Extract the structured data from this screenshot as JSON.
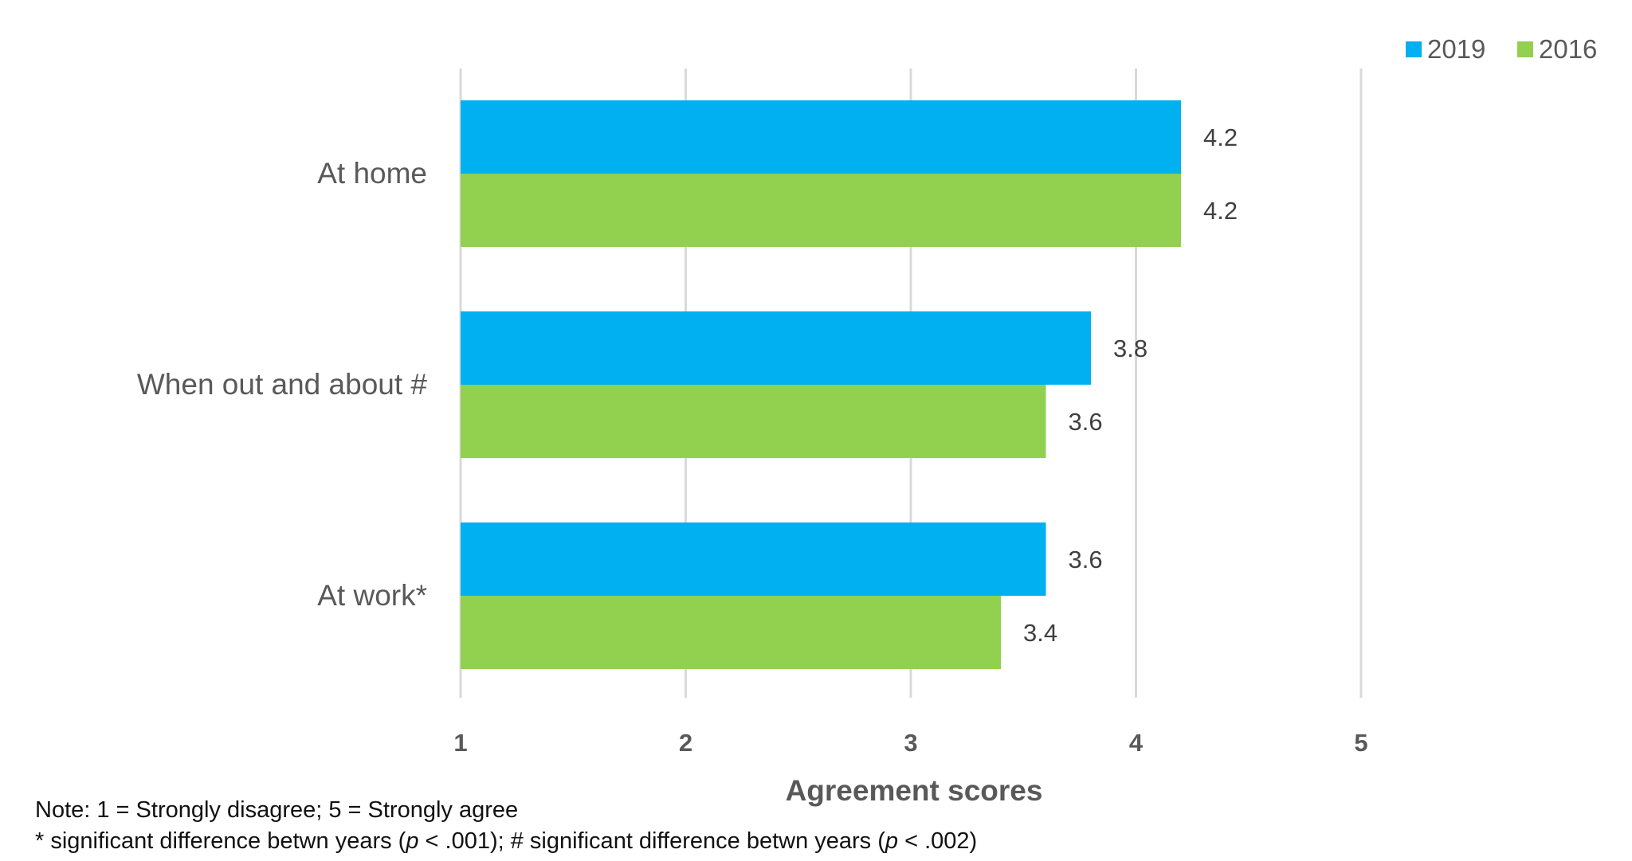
{
  "chart_data": {
    "type": "bar",
    "orientation": "horizontal",
    "categories": [
      "At home",
      "When out and about #",
      "At work*"
    ],
    "series": [
      {
        "name": "2019",
        "color": "#00B0F0",
        "values": [
          4.2,
          3.8,
          3.6
        ]
      },
      {
        "name": "2016",
        "color": "#92D050",
        "values": [
          4.2,
          3.6,
          3.4
        ]
      }
    ],
    "data_labels": {
      "2019": [
        "4.2",
        "3.8",
        "3.6"
      ],
      "2016": [
        "4.2",
        "3.6",
        "3.4"
      ]
    },
    "xlabel": "Agreement scores",
    "xlim": [
      1,
      5
    ],
    "xticks": [
      "1",
      "2",
      "3",
      "4",
      "5"
    ],
    "grid": true,
    "legend_position": "top-right"
  },
  "notes": {
    "line1": "Note: 1 = Strongly disagree; 5 = Strongly agree",
    "line2_part1": "* significant difference betwn years (",
    "line2_p1": "p",
    "line2_part2": " < .001); # significant difference betwn years (",
    "line2_p2": "p",
    "line2_part3": " < .002)"
  }
}
